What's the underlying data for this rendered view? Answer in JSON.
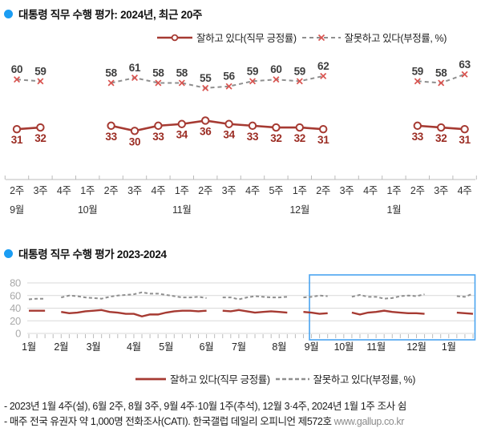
{
  "section1": {
    "title": "대통령 직무 수행 평가: 2024년, 최근 20주",
    "legend_positive": "잘하고 있다(직무 긍정률)",
    "legend_negative": "잘못하고 있다(부정률, %)"
  },
  "section2": {
    "title": "대통령 직무 수행 평가 2023-2024",
    "legend_positive": "잘하고 있다(직무 긍정률)",
    "legend_negative": "잘못하고 있다(부정률, %)"
  },
  "footer": {
    "line1": "- 2023년 1월 4주(설), 6월 2주, 8월 3주, 9월 4주·10월 1주(추석), 12월 3·4주, 2024년 1월 1주 조사 쉼",
    "line2": "- 매주 전국 유권자 약 1,000명 전화조사(CATI). 한국갤럽 데일리 오피니언 제572호 ",
    "url": "www.gallup.co.kr"
  },
  "colors": {
    "accent_blue": "#1b9df3",
    "positive_red": "#a63a32",
    "positive_label": "#9b2c23",
    "negative_gray": "#8f8f8f",
    "negative_x": "#d9534f",
    "negative_label": "#3f3f3f",
    "highlight_blue": "#4aa4f0",
    "grid": "#d9d9d9",
    "axis": "#bbbbbb",
    "ytick_label": "#aaaaaa",
    "tick_text": "#333333"
  },
  "chart_data": [
    {
      "type": "line",
      "title": "대통령 직무 수행 평가: 2024년, 최근 20주",
      "x_labels": [
        "2주",
        "3주",
        "4주",
        "1주",
        "2주",
        "3주",
        "4주",
        "1주",
        "2주",
        "3주",
        "4주",
        "5주",
        "1주",
        "2주",
        "3주",
        "4주",
        "1주",
        "2주",
        "3주",
        "4주"
      ],
      "month_labels": [
        {
          "label": "9월",
          "slot": 0
        },
        {
          "label": "10월",
          "slot": 3
        },
        {
          "label": "11월",
          "slot": 7
        },
        {
          "label": "12월",
          "slot": 12
        },
        {
          "label": "1월",
          "slot": 16
        }
      ],
      "grid": false,
      "legend_position": "top",
      "ylim": [
        20,
        70
      ],
      "series": [
        {
          "name": "잘하고 있다(직무 긍정률)",
          "style": "solid_circle",
          "values": [
            31,
            32,
            null,
            null,
            33,
            30,
            33,
            34,
            36,
            34,
            33,
            32,
            32,
            31,
            null,
            null,
            null,
            33,
            32,
            31
          ]
        },
        {
          "name": "잘못하고 있다(부정률, %)",
          "style": "dashed_x",
          "values": [
            60,
            59,
            null,
            null,
            58,
            61,
            58,
            58,
            55,
            56,
            59,
            60,
            59,
            62,
            null,
            null,
            null,
            59,
            58,
            63
          ]
        }
      ]
    },
    {
      "type": "line",
      "title": "대통령 직무 수행 평가 2023-2024",
      "y_ticks": [
        0,
        20,
        40,
        60,
        80
      ],
      "ylim": [
        0,
        80
      ],
      "grid": true,
      "legend_position": "bottom",
      "weeks_total": 56,
      "month_labels": [
        {
          "label": "1월",
          "week": 0
        },
        {
          "label": "2월",
          "week": 4
        },
        {
          "label": "3월",
          "week": 8
        },
        {
          "label": "4월",
          "week": 13
        },
        {
          "label": "5월",
          "week": 17
        },
        {
          "label": "6월",
          "week": 22
        },
        {
          "label": "7월",
          "week": 26
        },
        {
          "label": "8월",
          "week": 31
        },
        {
          "label": "9월",
          "week": 35
        },
        {
          "label": "10월",
          "week": 39
        },
        {
          "label": "11월",
          "week": 43
        },
        {
          "label": "12월",
          "week": 48
        },
        {
          "label": "1월",
          "week": 52
        }
      ],
      "highlight_region": {
        "from_week": 35,
        "to_week": 55,
        "meaning": "최근 20주"
      },
      "series": [
        {
          "name": "잘하고 있다(직무 긍정률)",
          "style": "solid",
          "values": [
            36,
            36,
            36,
            null,
            34,
            32,
            33,
            35,
            36,
            37,
            34,
            33,
            31,
            31,
            27,
            30,
            30,
            33,
            35,
            36,
            36,
            35,
            36,
            null,
            36,
            35,
            37,
            35,
            33,
            34,
            35,
            34,
            33,
            null,
            34,
            33,
            31,
            32,
            null,
            null,
            33,
            30,
            33,
            34,
            36,
            34,
            33,
            32,
            32,
            31,
            null,
            null,
            null,
            33,
            32,
            31
          ]
        },
        {
          "name": "잘못하고 있다(부정률, %)",
          "style": "dashed",
          "values": [
            54,
            55,
            55,
            null,
            57,
            60,
            59,
            57,
            56,
            55,
            58,
            60,
            61,
            62,
            65,
            63,
            63,
            61,
            59,
            57,
            57,
            58,
            56,
            null,
            57,
            57,
            54,
            57,
            59,
            58,
            57,
            57,
            58,
            null,
            57,
            58,
            60,
            59,
            null,
            null,
            58,
            61,
            58,
            58,
            55,
            56,
            59,
            60,
            59,
            62,
            null,
            null,
            null,
            59,
            58,
            63
          ]
        }
      ]
    }
  ]
}
